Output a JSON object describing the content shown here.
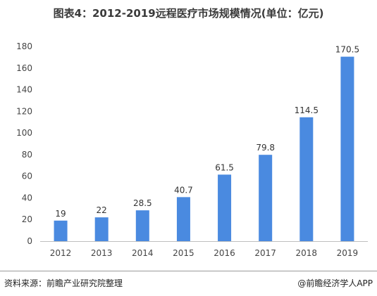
{
  "title": "图表4：2012-2019远程医疗市场规模情况(单位：亿元)",
  "footer": {
    "source": "资料来源：前瞻产业研究院整理",
    "credit": "@前瞻经济学人APP"
  },
  "colors": {
    "bar": "#4a8ae0",
    "axis": "#bfbfbf"
  },
  "chart_data": {
    "type": "bar",
    "title": "图表4：2012-2019远程医疗市场规模情况(单位：亿元)",
    "categories": [
      "2012",
      "2013",
      "2014",
      "2015",
      "2016",
      "2017",
      "2018",
      "2019"
    ],
    "values": [
      19,
      22,
      28.5,
      40.7,
      61.5,
      79.8,
      114.5,
      170.5
    ],
    "value_labels": [
      "19",
      "22",
      "28.5",
      "40.7",
      "61.5",
      "79.8",
      "114.5",
      "170.5"
    ],
    "ylim": [
      0,
      180
    ],
    "yticks": [
      "0",
      "20",
      "40",
      "60",
      "80",
      "100",
      "120",
      "140",
      "160",
      "180"
    ],
    "xlabel": "",
    "ylabel": "",
    "grid": false,
    "legend": "none"
  }
}
